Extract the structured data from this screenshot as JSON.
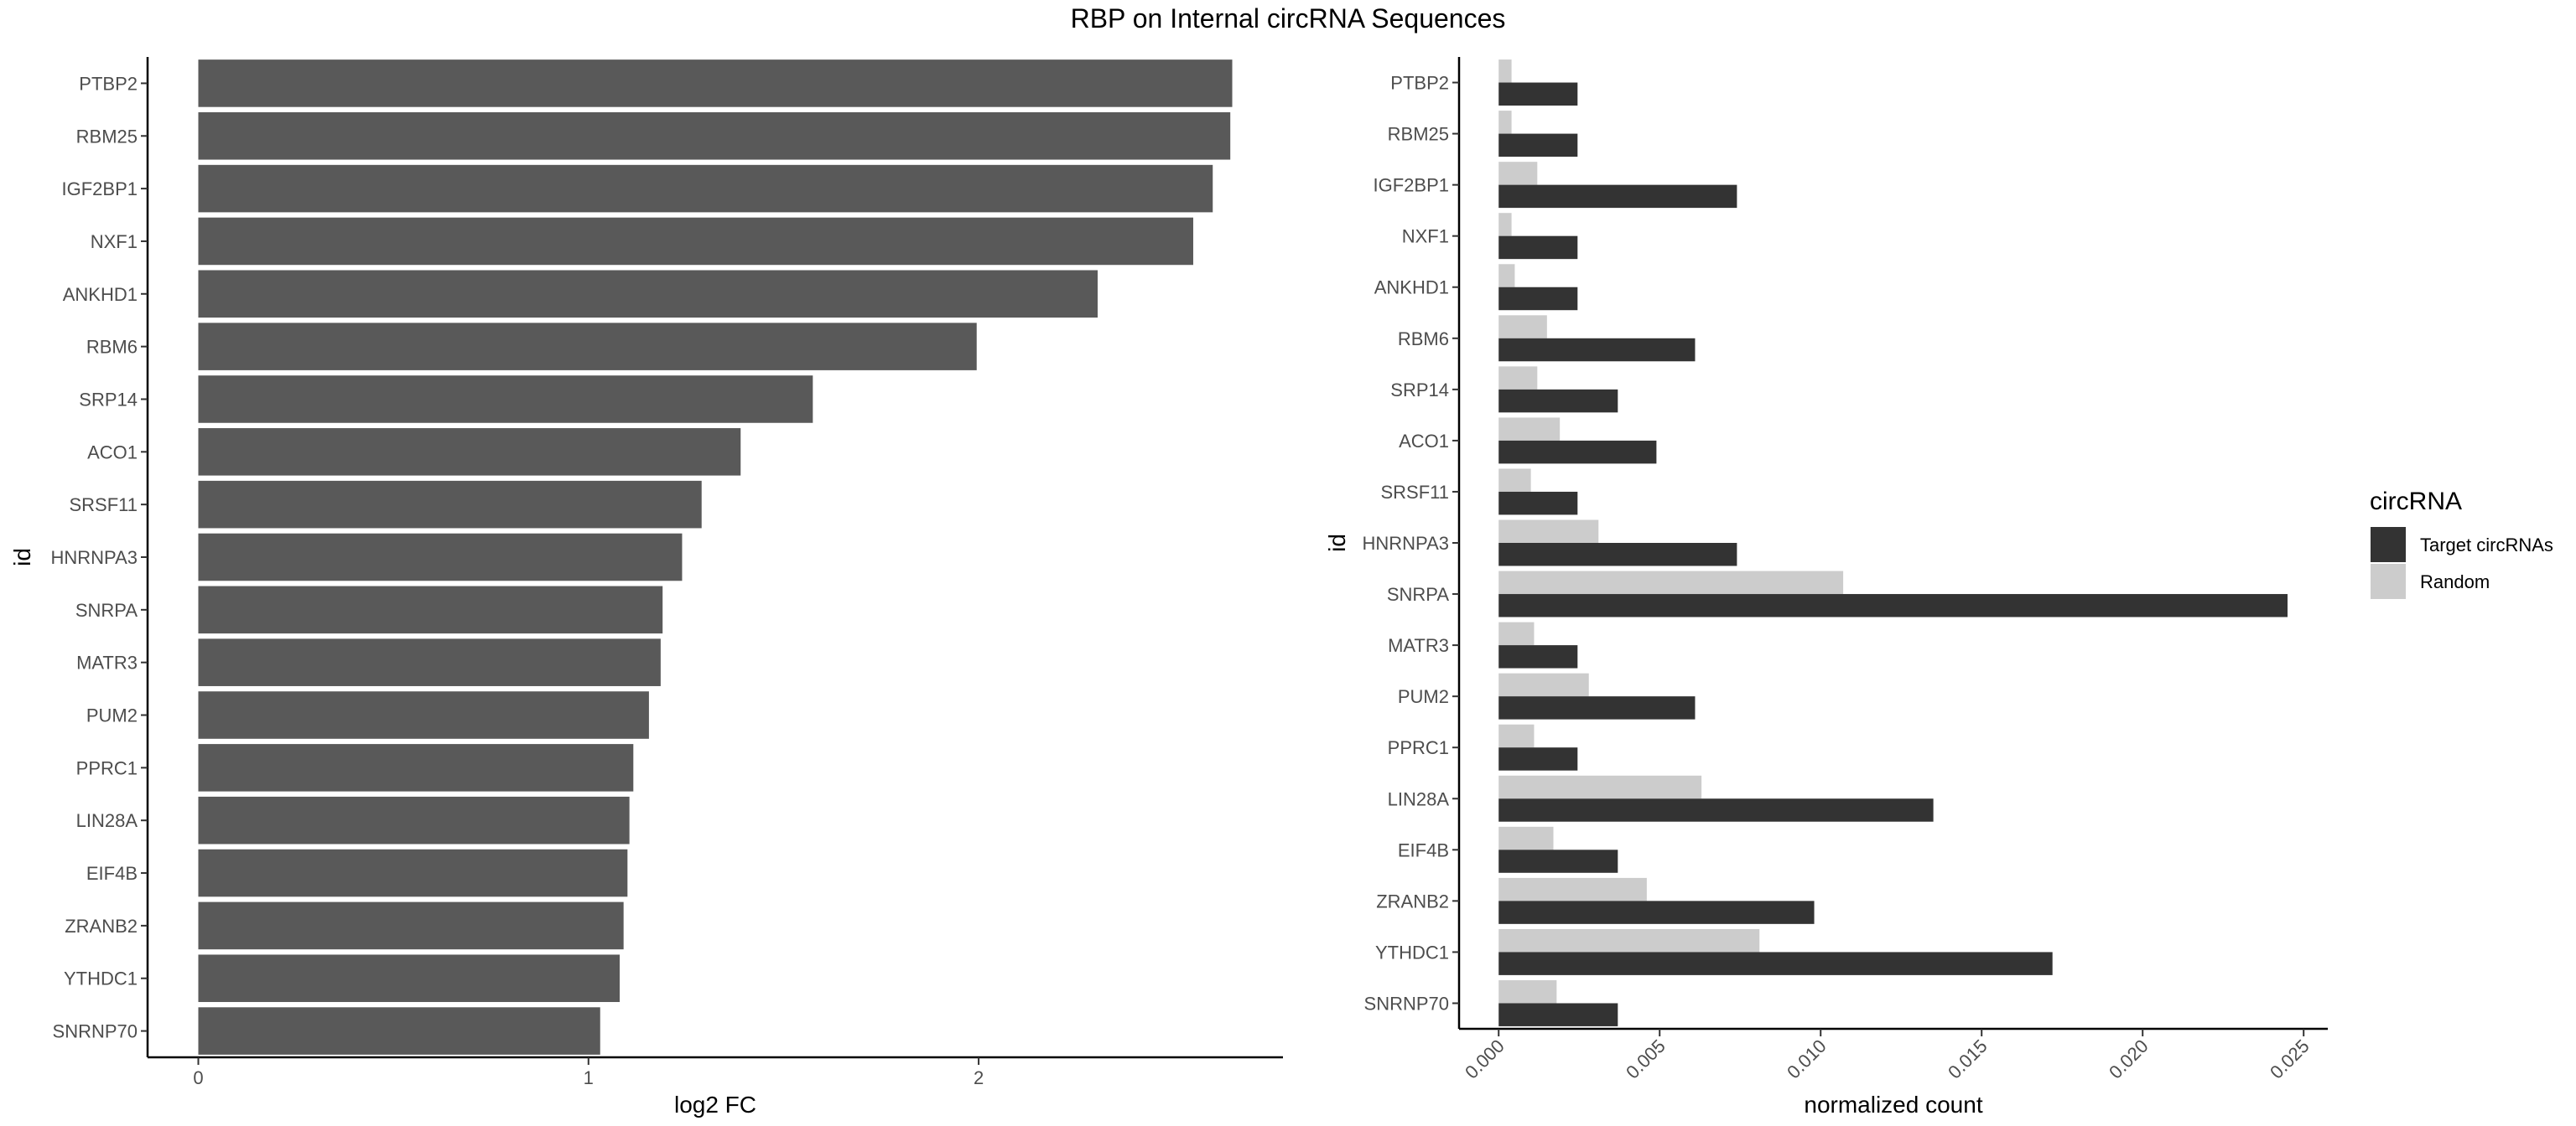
{
  "title": "RBP on Internal circRNA Sequences",
  "chart_data": [
    {
      "type": "bar",
      "orientation": "horizontal",
      "categories": [
        "PTBP2",
        "RBM25",
        "IGF2BP1",
        "NXF1",
        "ANKHD1",
        "RBM6",
        "SRP14",
        "ACO1",
        "SRSF11",
        "HNRNPA3",
        "SNRPA",
        "MATR3",
        "PUM2",
        "PPRC1",
        "LIN28A",
        "EIF4B",
        "ZRANB2",
        "YTHDC1",
        "SNRNP70"
      ],
      "values": [
        2.65,
        2.645,
        2.6,
        2.55,
        2.305,
        1.995,
        1.575,
        1.39,
        1.29,
        1.24,
        1.19,
        1.185,
        1.155,
        1.115,
        1.105,
        1.1,
        1.09,
        1.08,
        1.03
      ],
      "xlabel": "log2 FC",
      "ylabel": "id",
      "xticks": [
        "0",
        "1",
        "2"
      ],
      "xlim": [
        -0.13,
        2.78
      ],
      "color": "#595959",
      "grid": false
    },
    {
      "type": "bar",
      "orientation": "horizontal",
      "grouped": true,
      "categories": [
        "PTBP2",
        "RBM25",
        "IGF2BP1",
        "NXF1",
        "ANKHD1",
        "RBM6",
        "SRP14",
        "ACO1",
        "SRSF11",
        "HNRNPA3",
        "SNRPA",
        "MATR3",
        "PUM2",
        "PPRC1",
        "LIN28A",
        "EIF4B",
        "ZRANB2",
        "YTHDC1",
        "SNRNP70"
      ],
      "series": [
        {
          "name": "Target circRNAs",
          "color": "#333333",
          "values": [
            0.00245,
            0.00245,
            0.0074,
            0.00245,
            0.00245,
            0.0061,
            0.0037,
            0.0049,
            0.00245,
            0.0074,
            0.0245,
            0.00245,
            0.0061,
            0.00245,
            0.0135,
            0.0037,
            0.0098,
            0.0172,
            0.0037
          ]
        },
        {
          "name": "Random",
          "color": "#cccccc",
          "values": [
            0.0004,
            0.0004,
            0.0012,
            0.0004,
            0.0005,
            0.0015,
            0.0012,
            0.0019,
            0.001,
            0.0031,
            0.0107,
            0.0011,
            0.0028,
            0.0011,
            0.0063,
            0.0017,
            0.0046,
            0.0081,
            0.0018
          ]
        }
      ],
      "xlabel": "normalized count",
      "ylabel": "id",
      "xticks": [
        "0.000",
        "0.005",
        "0.010",
        "0.015",
        "0.020",
        "0.025"
      ],
      "xlim": [
        -0.00123,
        0.02575
      ],
      "legend": {
        "title": "circRNA",
        "position": "right"
      },
      "grid": false
    }
  ]
}
